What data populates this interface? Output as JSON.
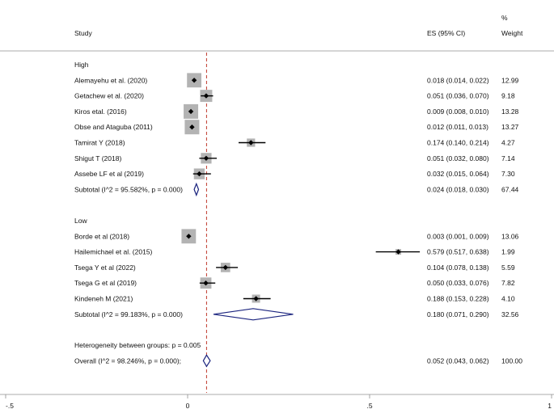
{
  "chart_data": {
    "type": "forest",
    "header": {
      "study": "Study",
      "es": "ES (95% CI)",
      "weight_line1": "%",
      "weight_line2": "Weight"
    },
    "groups": [
      {
        "name": "High",
        "studies": [
          {
            "label": "Alemayehu et al. (2020)",
            "es": 0.018,
            "lo": 0.014,
            "hi": 0.022,
            "es_text": "0.018 (0.014, 0.022)",
            "weight": 12.99,
            "weight_text": "12.99"
          },
          {
            "label": "Getachew et al. (2020)",
            "es": 0.051,
            "lo": 0.036,
            "hi": 0.07,
            "es_text": "0.051 (0.036, 0.070)",
            "weight": 9.18,
            "weight_text": "9.18"
          },
          {
            "label": "Kiros etal.  (2016)",
            "es": 0.009,
            "lo": 0.008,
            "hi": 0.01,
            "es_text": "0.009 (0.008, 0.010)",
            "weight": 13.28,
            "weight_text": "13.28"
          },
          {
            "label": "Obse and Ataguba (2011)",
            "es": 0.012,
            "lo": 0.011,
            "hi": 0.013,
            "es_text": "0.012 (0.011, 0.013)",
            "weight": 13.27,
            "weight_text": "13.27"
          },
          {
            "label": "Tamirat Y (2018)",
            "es": 0.174,
            "lo": 0.14,
            "hi": 0.214,
            "es_text": "0.174 (0.140, 0.214)",
            "weight": 4.27,
            "weight_text": "4.27"
          },
          {
            "label": "Shigut T (2018)",
            "es": 0.051,
            "lo": 0.032,
            "hi": 0.08,
            "es_text": "0.051 (0.032, 0.080)",
            "weight": 7.14,
            "weight_text": "7.14"
          },
          {
            "label": "Assebe LF et al (2019)",
            "es": 0.032,
            "lo": 0.015,
            "hi": 0.064,
            "es_text": "0.032 (0.015, 0.064)",
            "weight": 7.3,
            "weight_text": "7.30"
          }
        ],
        "subtotal": {
          "label": "Subtotal  (I^2 = 95.582%, p = 0.000)",
          "es": 0.024,
          "lo": 0.018,
          "hi": 0.03,
          "es_text": "0.024 (0.018, 0.030)",
          "weight_text": "67.44"
        }
      },
      {
        "name": "Low",
        "studies": [
          {
            "label": "Borde et al (2018)",
            "es": 0.003,
            "lo": 0.001,
            "hi": 0.009,
            "es_text": "0.003 (0.001, 0.009)",
            "weight": 13.06,
            "weight_text": "13.06"
          },
          {
            "label": "Hailemichael et al. (2015)",
            "es": 0.579,
            "lo": 0.517,
            "hi": 0.638,
            "es_text": "0.579 (0.517, 0.638)",
            "weight": 1.99,
            "weight_text": "1.99"
          },
          {
            "label": "Tsega Y et al (2022)",
            "es": 0.104,
            "lo": 0.078,
            "hi": 0.138,
            "es_text": "0.104 (0.078, 0.138)",
            "weight": 5.59,
            "weight_text": "5.59"
          },
          {
            "label": "Tsega G et al (2019)",
            "es": 0.05,
            "lo": 0.033,
            "hi": 0.076,
            "es_text": "0.050 (0.033, 0.076)",
            "weight": 7.82,
            "weight_text": "7.82"
          },
          {
            "label": "Kindeneh M (2021)",
            "es": 0.188,
            "lo": 0.153,
            "hi": 0.228,
            "es_text": "0.188 (0.153, 0.228)",
            "weight": 4.1,
            "weight_text": "4.10"
          }
        ],
        "subtotal": {
          "label": "Subtotal  (I^2 = 99.183%, p = 0.000)",
          "es": 0.18,
          "lo": 0.071,
          "hi": 0.29,
          "es_text": "0.180 (0.071, 0.290)",
          "weight_text": "32.56"
        }
      }
    ],
    "heterogeneity_text": "Heterogeneity between groups: p = 0.005",
    "overall": {
      "label": "Overall  (I^2 = 98.246%, p = 0.000);",
      "es": 0.052,
      "lo": 0.043,
      "hi": 0.062,
      "es_text": "0.052 (0.043, 0.062)",
      "weight_text": "100.00"
    },
    "reference_line": 0.052,
    "xlim": [
      -0.5,
      1
    ],
    "xticks": [
      -0.5,
      0,
      0.5,
      1
    ],
    "xtick_labels": [
      "-.5",
      "0",
      ".5",
      "1"
    ],
    "colors": {
      "reference_line": "#c0392b",
      "diamond": "#1a237e",
      "box": "#b3b3b3",
      "ci": "#000000",
      "rule": "#8f8f8f"
    }
  }
}
